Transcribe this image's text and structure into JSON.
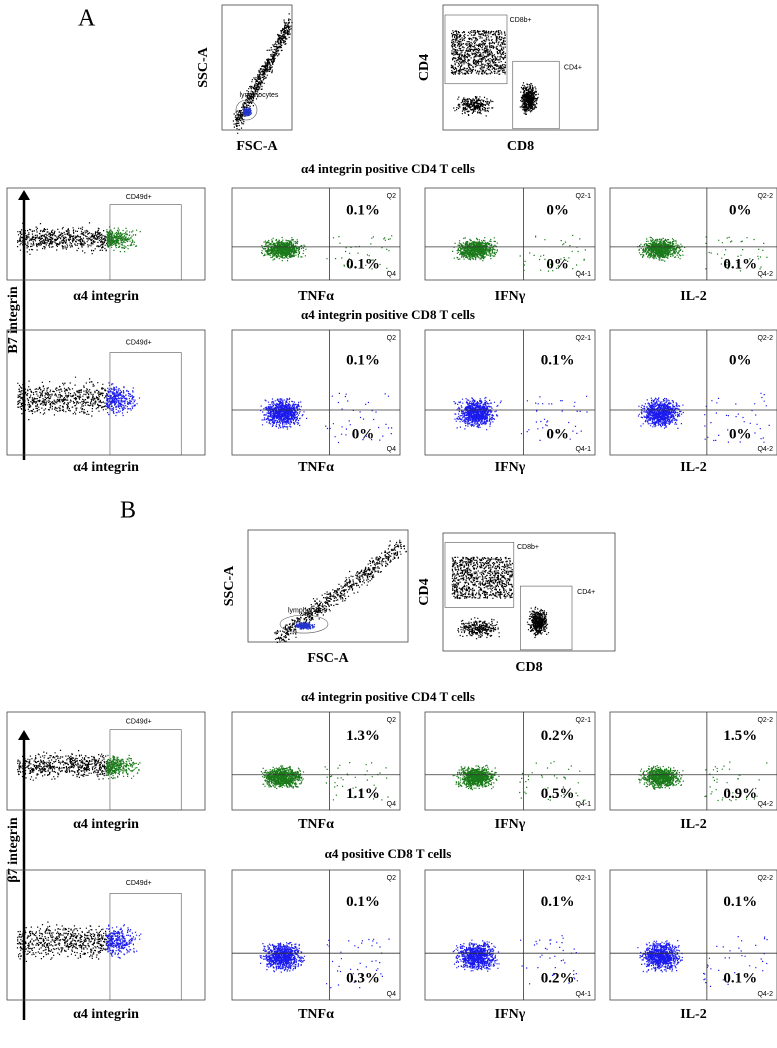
{
  "panels": [
    {
      "letter": "A",
      "scatter": {
        "y_label": "SSC-A",
        "x_label": "FSC-A",
        "gate": "lymphocytes"
      },
      "cd": {
        "y_label": "CD4",
        "x_label": "CD8",
        "gate_top": "CD8b+",
        "gate_right": "CD4+"
      },
      "y_axis_label": "Β7 integrin",
      "rows": [
        {
          "title": "α4 integrin positive CD4 T cells",
          "gate": "CD49d+",
          "first_x_label": "α4 integrin",
          "plots": [
            {
              "x_label": "TNFα",
              "q_top": "Q2",
              "q_bottom": "Q4",
              "top": "0.1%",
              "bottom": "0.1%"
            },
            {
              "x_label": "IFNγ",
              "q_top": "Q2-1",
              "q_bottom": "Q4-1",
              "top": "0%",
              "bottom": "0%"
            },
            {
              "x_label": "IL-2",
              "q_top": "Q2-2",
              "q_bottom": "Q4-2",
              "top": "0%",
              "bottom": "0.1%"
            }
          ]
        },
        {
          "title": "α4 integrin positive CD8 T cells",
          "gate": "CD49d+",
          "first_x_label": "α4 integrin",
          "plots": [
            {
              "x_label": "TNFα",
              "q_top": "Q2",
              "q_bottom": "Q4",
              "top": "0.1%",
              "bottom": "0%"
            },
            {
              "x_label": "IFNγ",
              "q_top": "Q2-1",
              "q_bottom": "Q4-1",
              "top": "0.1%",
              "bottom": "0%"
            },
            {
              "x_label": "IL-2",
              "q_top": "Q2-2",
              "q_bottom": "Q4-2",
              "top": "0%",
              "bottom": "0%"
            }
          ]
        }
      ]
    },
    {
      "letter": "B",
      "scatter": {
        "y_label": "SSC-A",
        "x_label": "FSC-A",
        "gate": "lymphocytes"
      },
      "cd": {
        "y_label": "CD4",
        "x_label": "CD8",
        "gate_top": "CD8b+",
        "gate_right": "CD4+"
      },
      "y_axis_label": "β7 integrin",
      "rows": [
        {
          "title": "α4 integrin positive CD4 T cells",
          "gate": "CD49d+",
          "first_x_label": "α4 integrin",
          "plots": [
            {
              "x_label": "TNFα",
              "q_top": "Q2",
              "q_bottom": "Q4",
              "top": "1.3%",
              "bottom": "1.1%"
            },
            {
              "x_label": "IFNγ",
              "q_top": "Q2-1",
              "q_bottom": "Q4-1",
              "top": "0.2%",
              "bottom": "0.5%"
            },
            {
              "x_label": "IL-2",
              "q_top": "Q2-2",
              "q_bottom": "Q4-2",
              "top": "1.5%",
              "bottom": "0.9%"
            }
          ]
        },
        {
          "title": "α4 positive CD8 T cells",
          "gate": "CD49d+",
          "first_x_label": "α4 integrin",
          "plots": [
            {
              "x_label": "TNFα",
              "q_top": "Q2",
              "q_bottom": "Q4",
              "top": "0.1%",
              "bottom": "0.3%"
            },
            {
              "x_label": "IFNγ",
              "q_top": "Q2-1",
              "q_bottom": "Q4-1",
              "top": "0.1%",
              "bottom": "0.2%"
            },
            {
              "x_label": "IL-2",
              "q_top": "Q2-2",
              "q_bottom": "Q4-2",
              "top": "0.1%",
              "bottom": "0.1%"
            }
          ]
        }
      ]
    }
  ]
}
